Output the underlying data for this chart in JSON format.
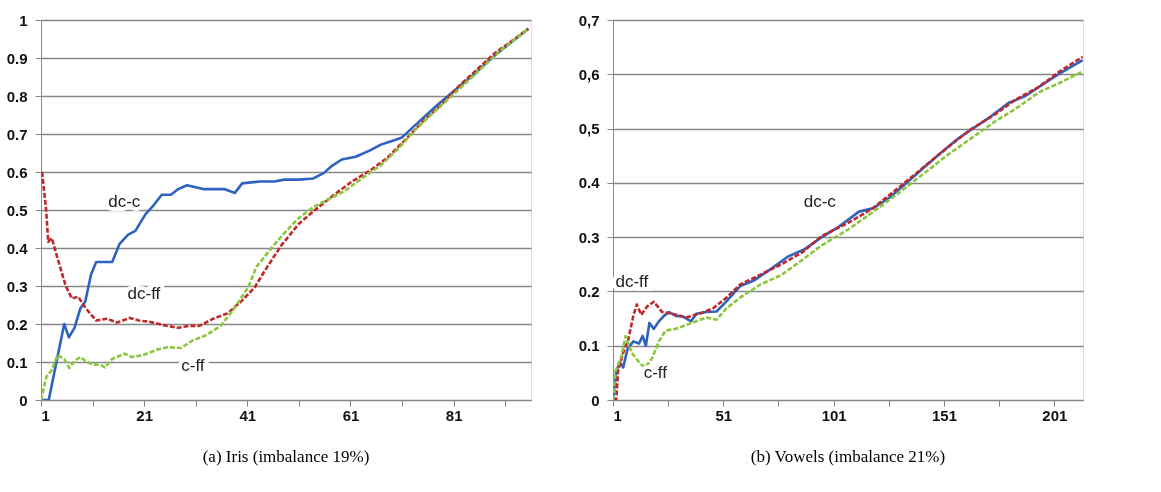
{
  "chart_data": [
    {
      "type": "line",
      "title": "(a) Iris (imbalance 19%)",
      "xlim": [
        1,
        96
      ],
      "ylim": [
        0,
        1
      ],
      "xticks": [
        1,
        {
          "value": 11,
          "label": null
        },
        21,
        {
          "value": 31,
          "label": null
        },
        41,
        {
          "value": 51,
          "label": null
        },
        61,
        {
          "value": 71,
          "label": null
        },
        81,
        {
          "value": 91,
          "label": null
        }
      ],
      "yticks": [
        0,
        0.1,
        0.2,
        0.3,
        0.4,
        0.5,
        0.6,
        0.7,
        0.8,
        0.9,
        1
      ],
      "grid": "y",
      "series": [
        {
          "color": "#2e62c0",
          "line_style": "solid",
          "x": [
            1,
            2.5,
            5.5,
            6.4,
            7.5,
            8.6,
            9.6,
            10.7,
            11.7,
            13,
            14.8,
            16.2,
            17.9,
            19.3,
            21.3,
            22.7,
            24.4,
            26.2,
            27.6,
            29.3,
            31,
            32.4,
            33.8,
            36.5,
            38.6,
            40,
            41.3,
            43.4,
            46.2,
            48.2,
            51,
            53.8,
            55.8,
            57.2,
            59.3,
            62,
            64.8,
            66.9,
            68.9,
            71,
            74.4,
            77.9,
            81.3,
            84.8,
            88.2,
            91.7,
            95.5
          ],
          "values": [
            0,
            0,
            0.2,
            0.165,
            0.19,
            0.24,
            0.26,
            0.33,
            0.363,
            0.363,
            0.363,
            0.41,
            0.435,
            0.445,
            0.49,
            0.51,
            0.54,
            0.54,
            0.555,
            0.565,
            0.56,
            0.555,
            0.555,
            0.555,
            0.545,
            0.57,
            0.572,
            0.575,
            0.575,
            0.58,
            0.58,
            0.583,
            0.597,
            0.614,
            0.633,
            0.64,
            0.657,
            0.672,
            0.681,
            0.691,
            0.734,
            0.777,
            0.816,
            0.855,
            0.898,
            0.936,
            0.977
          ]
        },
        {
          "color": "#c0282a",
          "line_style": "dashed",
          "x": [
            1.2,
            2,
            2.4,
            3.1,
            4.1,
            5.8,
            7,
            8.2,
            9.6,
            11.7,
            13.8,
            15.8,
            18.2,
            20,
            22,
            24.8,
            27.6,
            29.6,
            31.7,
            34.4,
            37.2,
            40,
            42.4,
            44.8,
            47.6,
            51,
            54.4,
            57.9,
            61.3,
            64.8,
            68.2,
            71.7,
            75.1,
            78.6,
            82,
            85.5,
            88.9,
            92.4,
            95.5
          ],
          "values": [
            0.6,
            0.5,
            0.416,
            0.426,
            0.378,
            0.3,
            0.267,
            0.272,
            0.243,
            0.209,
            0.214,
            0.204,
            0.216,
            0.209,
            0.206,
            0.197,
            0.19,
            0.195,
            0.195,
            0.214,
            0.228,
            0.262,
            0.296,
            0.349,
            0.407,
            0.464,
            0.503,
            0.541,
            0.575,
            0.604,
            0.638,
            0.686,
            0.734,
            0.777,
            0.826,
            0.869,
            0.912,
            0.946,
            0.977
          ]
        },
        {
          "color": "#8cc63f",
          "line_style": "dashed",
          "x": [
            1,
            2,
            3.1,
            4.2,
            5.5,
            6.5,
            7.5,
            8.6,
            9.6,
            11,
            12.4,
            13.4,
            14.8,
            17.2,
            18.6,
            20.7,
            23.4,
            25.5,
            28.2,
            30.3,
            33.1,
            35.8,
            38.6,
            41.3,
            42.7,
            45.5,
            48.2,
            51,
            53.8,
            56.5,
            60,
            63.4,
            66.9,
            70.3,
            73.1,
            76.5,
            80,
            83.4,
            86.9,
            90.3,
            95.5
          ],
          "values": [
            0,
            0.06,
            0.079,
            0.118,
            0.108,
            0.084,
            0.103,
            0.113,
            0.103,
            0.093,
            0.093,
            0.086,
            0.108,
            0.122,
            0.113,
            0.118,
            0.132,
            0.139,
            0.137,
            0.156,
            0.171,
            0.195,
            0.243,
            0.3,
            0.349,
            0.397,
            0.44,
            0.479,
            0.508,
            0.527,
            0.551,
            0.585,
            0.618,
            0.662,
            0.705,
            0.749,
            0.792,
            0.835,
            0.879,
            0.922,
            0.977
          ]
        }
      ],
      "annotations": [
        "dc-c",
        "dc-ff",
        "c-ff"
      ]
    },
    {
      "type": "line",
      "title": "(b) Vowels (imbalance 21%)",
      "xlim": [
        1,
        214
      ],
      "ylim": [
        0,
        0.7
      ],
      "xticks": [
        1,
        {
          "value": 26,
          "label": null
        },
        51,
        {
          "value": 76,
          "label": null
        },
        101,
        {
          "value": 126,
          "label": null
        },
        151,
        {
          "value": 176,
          "label": null
        },
        201
      ],
      "yticks": [
        0,
        0.1,
        0.2,
        0.3,
        0.4,
        {
          "value": 0.5,
          "label": "0,5"
        },
        {
          "value": 0.6,
          "label": "0,6"
        },
        {
          "value": 0.7,
          "label": "0,7"
        }
      ],
      "grid": "y",
      "series": [
        {
          "color": "#2e62c0",
          "line_style": "solid",
          "x": [
            1,
            2.5,
            4.1,
            5.6,
            7.6,
            10.2,
            12.8,
            14.4,
            15.9,
            17.5,
            19.5,
            21.8,
            24.1,
            26.4,
            29.5,
            32.5,
            36.4,
            38.7,
            43.3,
            47.9,
            52.5,
            58.7,
            64.8,
            71,
            80.2,
            87.9,
            95.6,
            103.3,
            112.5,
            118.7,
            126.4,
            134.1,
            141.8,
            149.5,
            157.2,
            164.8,
            172.5,
            180.2,
            187.9,
            195.6,
            203.3,
            213.8
          ],
          "values": [
            0,
            0.053,
            0.07,
            0.06,
            0.094,
            0.108,
            0.104,
            0.118,
            0.1,
            0.142,
            0.131,
            0.145,
            0.155,
            0.162,
            0.155,
            0.154,
            0.145,
            0.159,
            0.162,
            0.163,
            0.182,
            0.21,
            0.22,
            0.237,
            0.264,
            0.278,
            0.3,
            0.319,
            0.347,
            0.353,
            0.373,
            0.4,
            0.428,
            0.455,
            0.481,
            0.502,
            0.523,
            0.547,
            0.56,
            0.581,
            0.601,
            0.626
          ]
        },
        {
          "color": "#c0282a",
          "line_style": "dashed",
          "x": [
            1,
            2.5,
            3.3,
            5.6,
            7.9,
            10.2,
            11.8,
            13.8,
            16.4,
            19.5,
            23.3,
            27.9,
            34.1,
            40.2,
            46.4,
            52.5,
            58.7,
            67.9,
            77.2,
            86.4,
            95.6,
            107.9,
            118.7,
            131,
            141.8,
            152.5,
            163.3,
            174.1,
            183.3,
            194.1,
            203.3,
            213.8
          ],
          "values": [
            0,
            0.002,
            0.053,
            0.087,
            0.111,
            0.155,
            0.176,
            0.157,
            0.172,
            0.181,
            0.162,
            0.159,
            0.152,
            0.159,
            0.169,
            0.189,
            0.213,
            0.231,
            0.25,
            0.271,
            0.302,
            0.327,
            0.353,
            0.393,
            0.429,
            0.465,
            0.499,
            0.526,
            0.553,
            0.577,
            0.605,
            0.632
          ]
        },
        {
          "color": "#8cc63f",
          "line_style": "dashed",
          "x": [
            1,
            2.1,
            4.8,
            6.7,
            9.5,
            13.3,
            15.6,
            18.7,
            21.8,
            24.8,
            29.5,
            34.1,
            38.7,
            43.3,
            47.9,
            52.5,
            58.7,
            67.9,
            77.2,
            86.4,
            95.6,
            107.9,
            118.7,
            131,
            141.8,
            152.5,
            163.3,
            174.1,
            183.3,
            194.1,
            203.3,
            213.8
          ],
          "values": [
            0,
            0.053,
            0.08,
            0.118,
            0.087,
            0.067,
            0.06,
            0.077,
            0.108,
            0.128,
            0.131,
            0.138,
            0.145,
            0.152,
            0.148,
            0.169,
            0.189,
            0.213,
            0.23,
            0.257,
            0.285,
            0.315,
            0.346,
            0.383,
            0.417,
            0.451,
            0.482,
            0.513,
            0.536,
            0.567,
            0.584,
            0.605
          ]
        }
      ],
      "annotations": [
        "dc-c",
        "dc-ff",
        "c-ff"
      ]
    }
  ]
}
